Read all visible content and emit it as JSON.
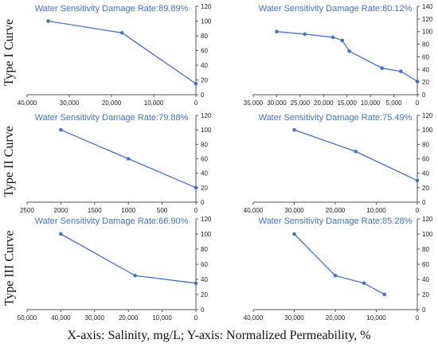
{
  "row_labels": [
    "Type I Curve",
    "Type II Curve",
    "Type III Curve"
  ],
  "footer_caption": "X-axis: Salinity, mg/L;  Y-axis: Normalized Permeability, %",
  "colors": {
    "series": "#4472C4",
    "title": "#4472C4",
    "axis": "#555555",
    "tick_text": "#222222"
  },
  "chart_data": [
    {
      "type": "line",
      "title": "Water Sensitivity Damage Rate:89.89%",
      "x_reversed": true,
      "xlim": [
        40000,
        0
      ],
      "ylim": [
        0,
        120
      ],
      "xticks": [
        40000,
        30000,
        20000,
        10000,
        0
      ],
      "xtick_labels": [
        "40,000",
        "30,000",
        "20,000",
        "10,000",
        "0"
      ],
      "yticks": [
        0,
        20,
        40,
        60,
        80,
        100,
        120
      ],
      "ytick_labels": [
        "0",
        "20",
        "40",
        "60",
        "80",
        "100",
        "120"
      ],
      "series": [
        {
          "x": [
            35000,
            17500,
            0
          ],
          "y": [
            100,
            84,
            15
          ]
        }
      ]
    },
    {
      "type": "line",
      "title": "Water Sensitivity Damage Rate:80.12%",
      "x_reversed": true,
      "xlim": [
        35000,
        0
      ],
      "ylim": [
        0,
        140
      ],
      "xticks": [
        35000,
        30000,
        25000,
        20000,
        15000,
        10000,
        5000,
        0
      ],
      "xtick_labels": [
        "35,000",
        "30,000",
        "25,000",
        "20,000",
        "15,000",
        "10,000",
        "5,000",
        "0"
      ],
      "yticks": [
        0,
        20,
        40,
        60,
        80,
        100,
        120,
        140
      ],
      "ytick_labels": [
        "0",
        "20",
        "40",
        "60",
        "80",
        "100",
        "120",
        "140"
      ],
      "series": [
        {
          "x": [
            30000,
            24000,
            18000,
            16000,
            14500,
            7500,
            3500,
            0
          ],
          "y": [
            100,
            96,
            91,
            86,
            69,
            42,
            37,
            21
          ]
        }
      ]
    },
    {
      "type": "line",
      "title": "Water Sensitivity Damage Rate:79.88%",
      "x_reversed": true,
      "xlim": [
        2500,
        0
      ],
      "ylim": [
        0,
        120
      ],
      "xticks": [
        2500,
        2000,
        1500,
        1000,
        500,
        0
      ],
      "xtick_labels": [
        "2500",
        "2000",
        "1500",
        "1000",
        "500",
        "0"
      ],
      "yticks": [
        0,
        20,
        40,
        60,
        80,
        100,
        120
      ],
      "ytick_labels": [
        "0",
        "20",
        "40",
        "60",
        "80",
        "100",
        "120"
      ],
      "series": [
        {
          "x": [
            2000,
            1000,
            0
          ],
          "y": [
            100,
            60,
            20
          ]
        }
      ]
    },
    {
      "type": "line",
      "title": "Water Sensitivity Damage Rate:75.49%",
      "x_reversed": true,
      "xlim": [
        40000,
        0
      ],
      "ylim": [
        0,
        120
      ],
      "xticks": [
        40000,
        30000,
        20000,
        10000,
        0
      ],
      "xtick_labels": [
        "40,000",
        "30,000",
        "20,000",
        "10,000",
        "0"
      ],
      "yticks": [
        0,
        20,
        40,
        60,
        80,
        100,
        120
      ],
      "ytick_labels": [
        "0",
        "20",
        "40",
        "60",
        "80",
        "100",
        "120"
      ],
      "series": [
        {
          "x": [
            30000,
            15000,
            0
          ],
          "y": [
            100,
            70,
            30
          ]
        }
      ]
    },
    {
      "type": "line",
      "title": "Water Sensitivity Damage Rate:66.90%",
      "x_reversed": true,
      "xlim": [
        50000,
        0
      ],
      "ylim": [
        0,
        120
      ],
      "xticks": [
        50000,
        40000,
        30000,
        20000,
        10000,
        0
      ],
      "xtick_labels": [
        "50,000",
        "40,000",
        "30,000",
        "20,000",
        "10,000",
        "0"
      ],
      "yticks": [
        0,
        20,
        40,
        60,
        80,
        100,
        120
      ],
      "ytick_labels": [
        "0",
        "20",
        "40",
        "60",
        "80",
        "100",
        "120"
      ],
      "series": [
        {
          "x": [
            40000,
            18000,
            0
          ],
          "y": [
            100,
            45,
            35
          ]
        }
      ]
    },
    {
      "type": "line",
      "title": "Water Sensitivity Damage Rate:85.28%",
      "x_reversed": true,
      "xlim": [
        40000,
        0
      ],
      "ylim": [
        0,
        120
      ],
      "xticks": [
        40000,
        30000,
        20000,
        10000,
        0
      ],
      "xtick_labels": [
        "40,000",
        "30,000",
        "20,000",
        "10,000",
        "0"
      ],
      "yticks": [
        0,
        20,
        40,
        60,
        80,
        100,
        120
      ],
      "ytick_labels": [
        "0",
        "20",
        "40",
        "60",
        "80",
        "100",
        "120"
      ],
      "series": [
        {
          "x": [
            30000,
            20000,
            13000,
            8000
          ],
          "y": [
            100,
            45,
            35,
            20
          ]
        }
      ]
    }
  ]
}
